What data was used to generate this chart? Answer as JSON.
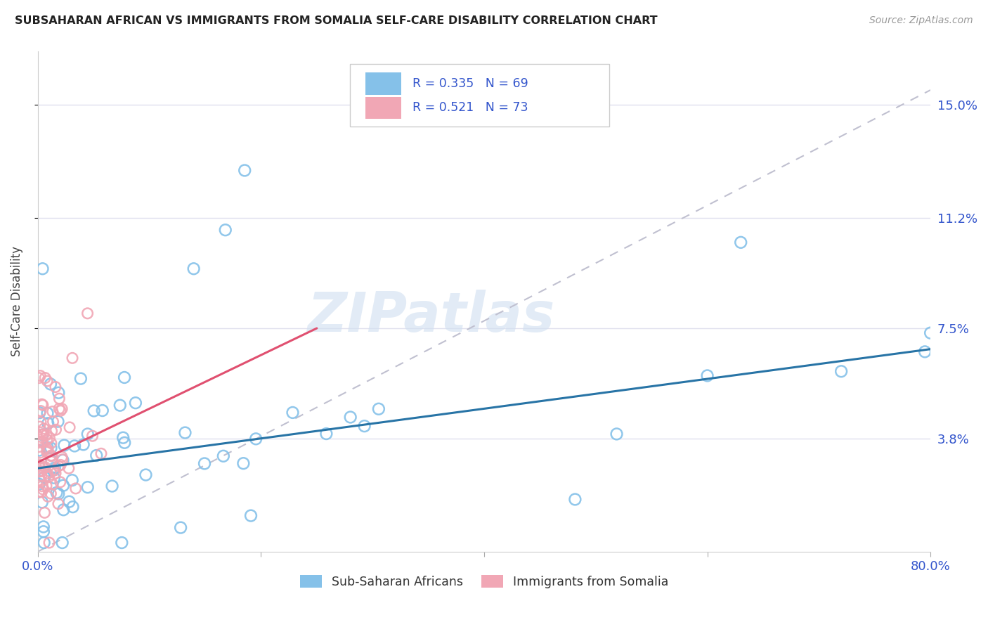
{
  "title": "SUBSAHARAN AFRICAN VS IMMIGRANTS FROM SOMALIA SELF-CARE DISABILITY CORRELATION CHART",
  "source": "Source: ZipAtlas.com",
  "ylabel": "Self-Care Disability",
  "yticks_labels": [
    "15.0%",
    "11.2%",
    "7.5%",
    "3.8%"
  ],
  "ytick_vals": [
    0.15,
    0.112,
    0.075,
    0.038
  ],
  "legend_blue_label": "Sub-Saharan Africans",
  "legend_pink_label": "Immigrants from Somalia",
  "blue_color": "#85c1e9",
  "pink_color": "#f1a7b5",
  "blue_edge_color": "#5b9fd4",
  "pink_edge_color": "#e07090",
  "blue_line_color": "#2874a6",
  "pink_line_color": "#e05070",
  "dashed_line_color": "#c0c0d0",
  "watermark_color": "#d0dff0",
  "xlim": [
    0.0,
    0.8
  ],
  "ylim": [
    0.0,
    0.168
  ],
  "background_color": "#ffffff",
  "grid_color": "#e0e0ee",
  "title_color": "#222222",
  "source_color": "#999999",
  "axis_color": "#3355cc",
  "blue_line_x": [
    0.0,
    0.8
  ],
  "blue_line_y": [
    0.028,
    0.068
  ],
  "pink_line_x": [
    0.0,
    0.25
  ],
  "pink_line_y": [
    0.03,
    0.075
  ],
  "dashed_line_x": [
    0.0,
    0.8
  ],
  "dashed_line_y": [
    0.0,
    0.155
  ]
}
